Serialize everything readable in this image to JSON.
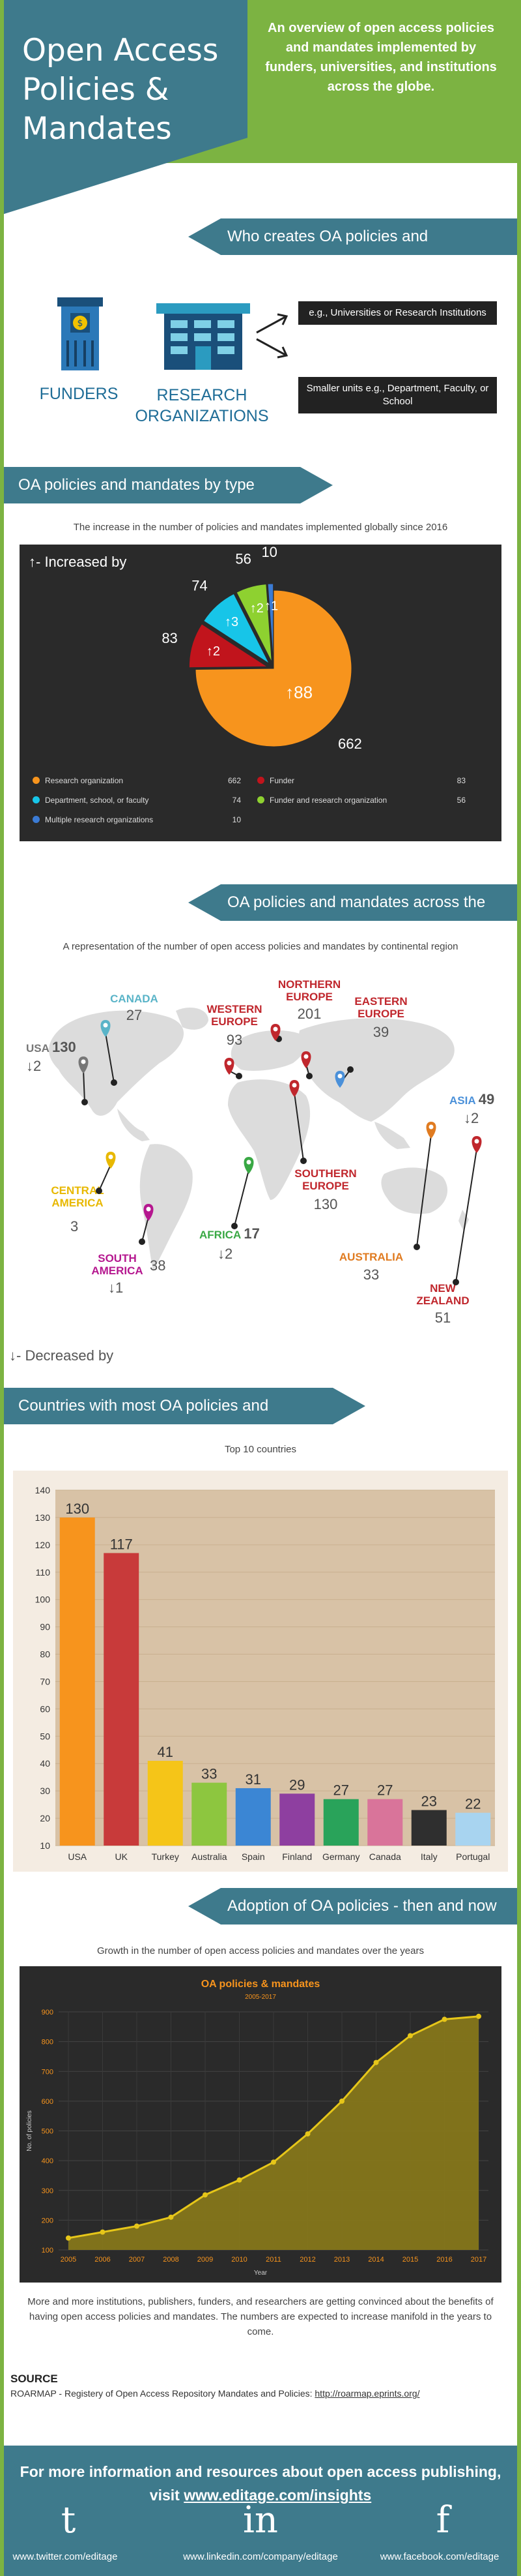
{
  "header": {
    "title_line1": "Open Access",
    "title_line2": "Policies &",
    "title_line3": "Mandates",
    "description": "An overview of open access policies and mandates implemented by funders, universities, and institutions across the globe."
  },
  "who": {
    "banner": "Who creates OA policies and mandates?",
    "funders_label": "FUNDERS",
    "research_label_line1": "RESEARCH",
    "research_label_line2": "ORGANIZATIONS",
    "example1": "e.g., Universities or Research Institutions",
    "example2": "Smaller units e.g., Department, Faculty, or School"
  },
  "types": {
    "banner": "OA policies and mandates by type",
    "caption": "The increase in the number of policies and mandates implemented globally since 2016",
    "increased_label": "↑- Increased by"
  },
  "globe": {
    "banner": "OA policies and mandates across the globe",
    "caption": "A representation of the number of open access policies and mandates by continental region",
    "decreased_label": "↓- Decreased by",
    "regions": [
      {
        "name": "USA",
        "value": "130",
        "change": "↓2",
        "color": "#777777"
      },
      {
        "name": "CANADA",
        "value": "27",
        "change": "",
        "color": "#5ab4c8"
      },
      {
        "name": "WESTERN EUROPE",
        "value": "93",
        "change": "",
        "color": "#c0272d"
      },
      {
        "name": "NORTHERN EUROPE",
        "value": "201",
        "change": "",
        "color": "#c0272d"
      },
      {
        "name": "EASTERN EUROPE",
        "value": "39",
        "change": "",
        "color": "#c0272d"
      },
      {
        "name": "ASIA",
        "value": "49",
        "change": "↓2",
        "color": "#4a90d9"
      },
      {
        "name": "CENTRAL AMERICA",
        "value": "3",
        "change": "",
        "color": "#e8b800"
      },
      {
        "name": "SOUTH AMERICA",
        "value": "38",
        "change": "↓1",
        "color": "#b5178f"
      },
      {
        "name": "AFRICA",
        "value": "17",
        "change": "↓2",
        "color": "#39a844"
      },
      {
        "name": "SOUTHERN EUROPE",
        "value": "130",
        "change": "",
        "color": "#c0272d"
      },
      {
        "name": "AUSTRALIA",
        "value": "33",
        "change": "",
        "color": "#e07b20"
      },
      {
        "name": "NEW ZEALAND",
        "value": "51",
        "change": "",
        "color": "#c0272d"
      }
    ]
  },
  "countries": {
    "banner": "Countries with most OA policies and mandates",
    "caption": "Top 10 countries"
  },
  "adoption": {
    "banner": "Adoption of OA policies - then and now",
    "caption": "Growth in the number of open access policies and mandates over the years",
    "text": "More and more institutions, publishers, funders, and researchers are getting convinced about the benefits of having open access policies and mandates. The numbers are expected to increase manifold in the years to come."
  },
  "source": {
    "heading": "SOURCE",
    "text": "ROARMAP - Registery of Open Access Repository Mandates and Policies:",
    "link": "http://roarmap.eprints.org/"
  },
  "footer": {
    "line1": "For more information and resources about open access publishing,",
    "line2_prefix": "visit ",
    "line2_link": "www.editage.com/insights",
    "twitter_icon": "t",
    "linkedin_icon": "in",
    "facebook_icon": "f",
    "twitter": "www.twitter.com/editage",
    "linkedin": "www.linkedin.com/company/editage",
    "facebook": "www.facebook.com/editage"
  },
  "chart_data": [
    {
      "type": "pie",
      "title": "",
      "slices": [
        {
          "name": "Research organization",
          "value": 662,
          "increase": "↑88",
          "color": "#f7941d"
        },
        {
          "name": "Funder",
          "value": 83,
          "increase": "↑2",
          "color": "#c1141c"
        },
        {
          "name": "Department, school, or faculty",
          "value": 74,
          "increase": "↑3",
          "color": "#17c5e8"
        },
        {
          "name": "Funder and research organization",
          "value": 56,
          "increase": "↑2",
          "color": "#8ed130"
        },
        {
          "name": "Multiple research organizations",
          "value": 10,
          "increase": "↑1",
          "color": "#3b7bd4"
        }
      ],
      "legend_position": "bottom"
    },
    {
      "type": "bar",
      "title": "Top 10 countries",
      "categories": [
        "USA",
        "UK",
        "Turkey",
        "Australia",
        "Spain",
        "Finland",
        "Germany",
        "Canada",
        "Italy",
        "Portugal"
      ],
      "values": [
        130,
        117,
        41,
        33,
        31,
        29,
        27,
        27,
        23,
        22
      ],
      "colors": [
        "#f7941d",
        "#c83a3a",
        "#f5c518",
        "#8dc63f",
        "#3b86d4",
        "#8e3fa0",
        "#29a35a",
        "#d9749a",
        "#2f2f2f",
        "#a8d4f0"
      ],
      "ylim": [
        10,
        140
      ],
      "yticks": [
        10,
        20,
        30,
        40,
        50,
        60,
        70,
        80,
        90,
        100,
        110,
        120,
        130,
        140
      ],
      "grid": true
    },
    {
      "type": "area",
      "title": "OA policies & mandates",
      "subtitle": "2005-2017",
      "xlabel": "Year",
      "ylabel": "No. of policies",
      "x": [
        2005,
        2006,
        2007,
        2008,
        2009,
        2010,
        2011,
        2012,
        2013,
        2014,
        2015,
        2016,
        2017
      ],
      "values": [
        140,
        160,
        180,
        210,
        285,
        335,
        395,
        490,
        600,
        730,
        820,
        875,
        885
      ],
      "ylim": [
        100,
        900
      ],
      "yticks": [
        100,
        200,
        300,
        400,
        500,
        600,
        700,
        800,
        900
      ],
      "line_color": "#e6c619",
      "grid": true
    }
  ]
}
